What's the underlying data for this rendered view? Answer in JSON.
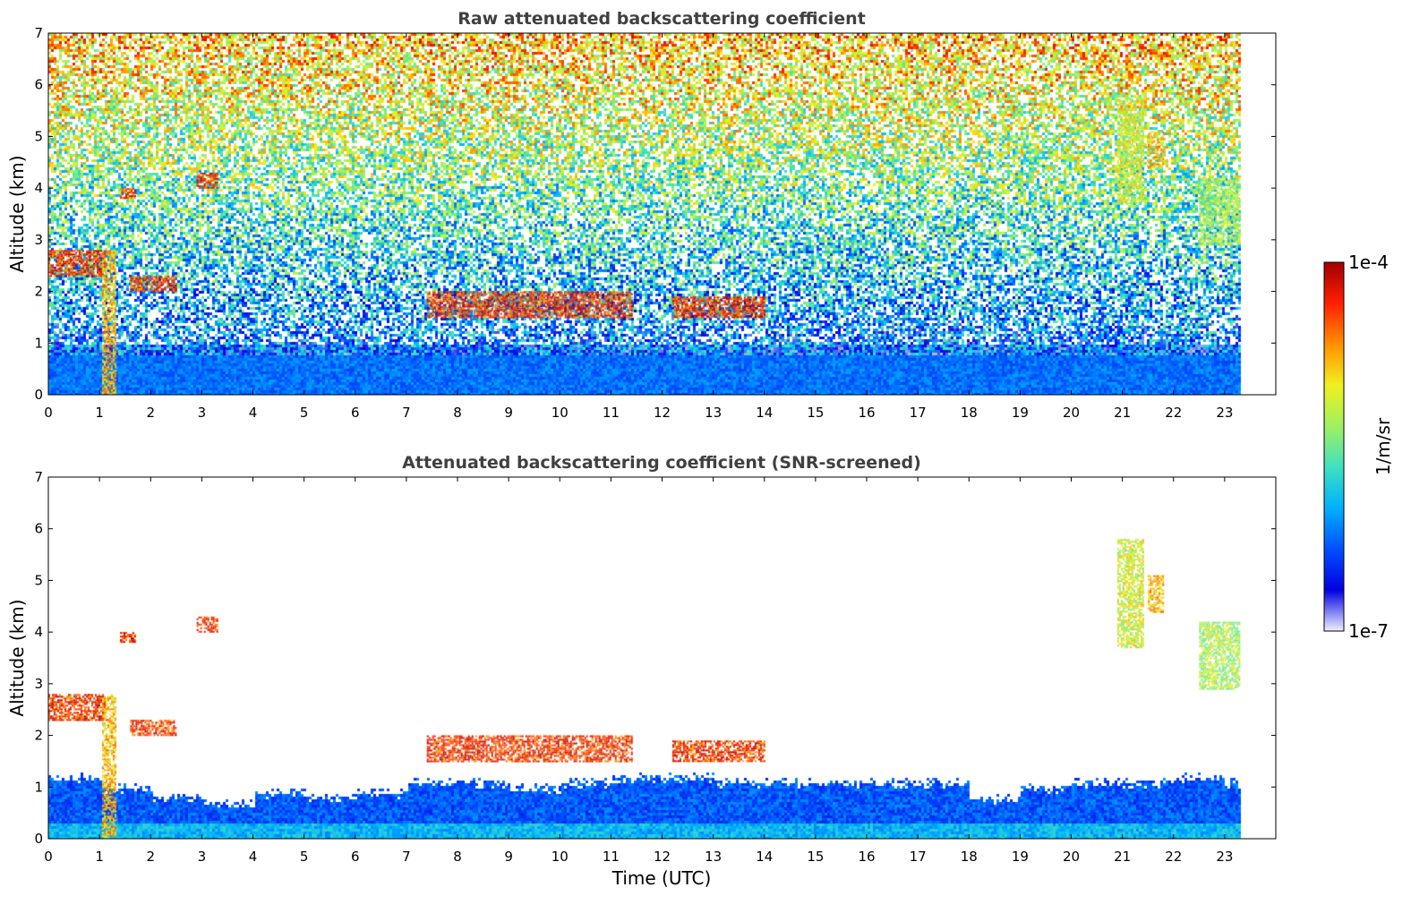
{
  "chart_data": [
    {
      "type": "heatmap",
      "title": "Raw attenuated backscattering coefficient",
      "xlabel": "",
      "ylabel": "Altitude (km)",
      "xlim": [
        0,
        24
      ],
      "ylim": [
        0,
        7
      ],
      "xticks": [
        "0",
        "1",
        "2",
        "3",
        "4",
        "5",
        "6",
        "7",
        "8",
        "9",
        "10",
        "11",
        "12",
        "13",
        "14",
        "15",
        "16",
        "17",
        "18",
        "19",
        "20",
        "21",
        "22",
        "23"
      ],
      "yticks": [
        "0",
        "1",
        "2",
        "3",
        "4",
        "5",
        "6",
        "7"
      ],
      "data_end_time": 23.3,
      "features": [
        {
          "kind": "cloud",
          "t_start": 0.0,
          "t_end": 1.1,
          "alt_bottom": 2.3,
          "alt_top": 2.8,
          "level": 1.0
        },
        {
          "kind": "precip",
          "t_start": 1.05,
          "t_end": 1.3,
          "alt_bottom": 0.0,
          "alt_top": 2.8,
          "level": 0.85
        },
        {
          "kind": "cloud",
          "t_start": 1.4,
          "t_end": 1.7,
          "alt_bottom": 3.8,
          "alt_top": 4.0,
          "level": 1.0
        },
        {
          "kind": "cloud",
          "t_start": 1.6,
          "t_end": 2.5,
          "alt_bottom": 2.0,
          "alt_top": 2.3,
          "level": 1.0
        },
        {
          "kind": "cloud",
          "t_start": 2.9,
          "t_end": 3.3,
          "alt_bottom": 4.0,
          "alt_top": 4.3,
          "level": 1.0
        },
        {
          "kind": "cloud",
          "t_start": 7.4,
          "t_end": 11.4,
          "alt_bottom": 1.5,
          "alt_top": 2.0,
          "level": 1.0
        },
        {
          "kind": "cloud",
          "t_start": 12.2,
          "t_end": 14.0,
          "alt_bottom": 1.5,
          "alt_top": 1.9,
          "level": 1.0
        },
        {
          "kind": "cloud",
          "t_start": 20.9,
          "t_end": 21.4,
          "alt_bottom": 3.7,
          "alt_top": 5.8,
          "level": 0.75
        },
        {
          "kind": "cloud",
          "t_start": 21.5,
          "t_end": 21.8,
          "alt_bottom": 4.4,
          "alt_top": 5.1,
          "level": 0.85
        },
        {
          "kind": "cloud",
          "t_start": 22.5,
          "t_end": 23.3,
          "alt_bottom": 2.9,
          "alt_top": 4.2,
          "level": 0.7
        }
      ]
    },
    {
      "type": "heatmap",
      "title": "Attenuated backscattering coefficient (SNR-screened)",
      "xlabel": "Time (UTC)",
      "ylabel": "Altitude (km)",
      "xlim": [
        0,
        24
      ],
      "ylim": [
        0,
        7
      ],
      "xticks": [
        "0",
        "1",
        "2",
        "3",
        "4",
        "5",
        "6",
        "7",
        "8",
        "9",
        "10",
        "11",
        "12",
        "13",
        "14",
        "15",
        "16",
        "17",
        "18",
        "19",
        "20",
        "21",
        "22",
        "23"
      ],
      "yticks": [
        "0",
        "1",
        "2",
        "3",
        "4",
        "5",
        "6",
        "7"
      ],
      "data_end_time": 23.3,
      "boundary_layer_top_km": [
        1.2,
        1.0,
        0.8,
        0.7,
        0.9,
        0.8,
        0.9,
        1.1,
        1.1,
        1.0,
        1.1,
        1.2,
        1.2,
        1.1,
        1.1,
        1.1,
        1.1,
        1.1,
        0.8,
        1.0,
        1.1,
        1.1,
        1.2,
        1.1
      ]
    }
  ],
  "colorbar": {
    "label": "1/m/sr",
    "max_label": "1e-4",
    "min_label": "1e-7",
    "colormap": [
      "#f0f0ff",
      "#0000e0",
      "#0050ff",
      "#00b0ff",
      "#40e0c0",
      "#a0f060",
      "#f0f020",
      "#ff9000",
      "#ff2000",
      "#a00000"
    ]
  }
}
